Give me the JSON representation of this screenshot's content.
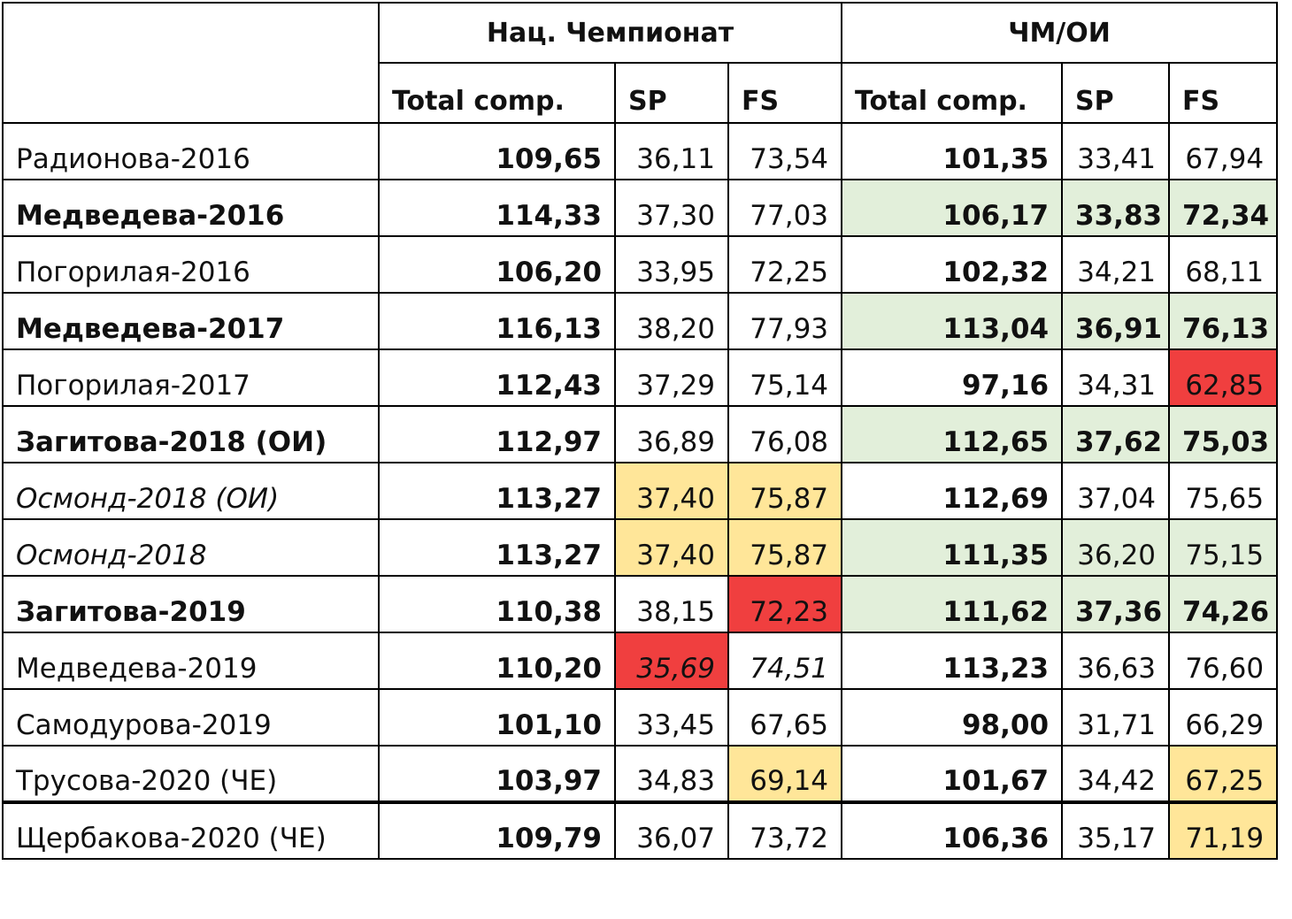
{
  "header": {
    "group_nat": "Нац. Чемпионат",
    "group_wc": "ЧМ/ОИ",
    "col_total_1": "Total comp.",
    "col_sp_1": "SP",
    "col_fs_1": "FS",
    "col_total_2": "Total comp.",
    "col_sp_2": "SP",
    "col_fs_2": "FS"
  },
  "colors": {
    "green": "#e2efda",
    "yellow": "#ffe699",
    "red": "#f03f3f"
  },
  "rows": [
    {
      "name": "Радионова-2016",
      "nat_total": "109,65",
      "nat_sp": "36,11",
      "nat_fs": "73,54",
      "wc_total": "101,35",
      "wc_sp": "33,41",
      "wc_fs": "67,94"
    },
    {
      "name": "Медведева-2016",
      "nat_total": "114,33",
      "nat_sp": "37,30",
      "nat_fs": "77,03",
      "wc_total": "106,17",
      "wc_sp": "33,83",
      "wc_fs": "72,34"
    },
    {
      "name": "Погорилая-2016",
      "nat_total": "106,20",
      "nat_sp": "33,95",
      "nat_fs": "72,25",
      "wc_total": "102,32",
      "wc_sp": "34,21",
      "wc_fs": "68,11"
    },
    {
      "name": "Медведева-2017",
      "nat_total": "116,13",
      "nat_sp": "38,20",
      "nat_fs": "77,93",
      "wc_total": "113,04",
      "wc_sp": "36,91",
      "wc_fs": "76,13"
    },
    {
      "name": "Погорилая-2017",
      "nat_total": "112,43",
      "nat_sp": "37,29",
      "nat_fs": "75,14",
      "wc_total": "97,16",
      "wc_sp": "34,31",
      "wc_fs": "62,85"
    },
    {
      "name": "Загитова-2018 (ОИ)",
      "nat_total": "112,97",
      "nat_sp": "36,89",
      "nat_fs": "76,08",
      "wc_total": "112,65",
      "wc_sp": "37,62",
      "wc_fs": "75,03"
    },
    {
      "name": "Осмонд-2018 (ОИ)",
      "nat_total": "113,27",
      "nat_sp": "37,40",
      "nat_fs": "75,87",
      "wc_total": "112,69",
      "wc_sp": "37,04",
      "wc_fs": "75,65"
    },
    {
      "name": "Осмонд-2018",
      "nat_total": "113,27",
      "nat_sp": "37,40",
      "nat_fs": "75,87",
      "wc_total": "111,35",
      "wc_sp": "36,20",
      "wc_fs": "75,15"
    },
    {
      "name": "Загитова-2019",
      "nat_total": "110,38",
      "nat_sp": "38,15",
      "nat_fs": "72,23",
      "wc_total": "111,62",
      "wc_sp": "37,36",
      "wc_fs": "74,26"
    },
    {
      "name": "Медведева-2019",
      "nat_total": "110,20",
      "nat_sp": "35,69",
      "nat_fs": "74,51",
      "wc_total": "113,23",
      "wc_sp": "36,63",
      "wc_fs": "76,60"
    },
    {
      "name": "Самодурова-2019",
      "nat_total": "101,10",
      "nat_sp": "33,45",
      "nat_fs": "67,65",
      "wc_total": "98,00",
      "wc_sp": "31,71",
      "wc_fs": "66,29"
    },
    {
      "name": "Трусова-2020 (ЧЕ)",
      "nat_total": "103,97",
      "nat_sp": "34,83",
      "nat_fs": "69,14",
      "wc_total": "101,67",
      "wc_sp": "34,42",
      "wc_fs": "67,25"
    },
    {
      "name": "Щербакова-2020 (ЧЕ)",
      "nat_total": "109,79",
      "nat_sp": "36,07",
      "nat_fs": "73,72",
      "wc_total": "106,36",
      "wc_sp": "35,17",
      "wc_fs": "71,19"
    }
  ]
}
